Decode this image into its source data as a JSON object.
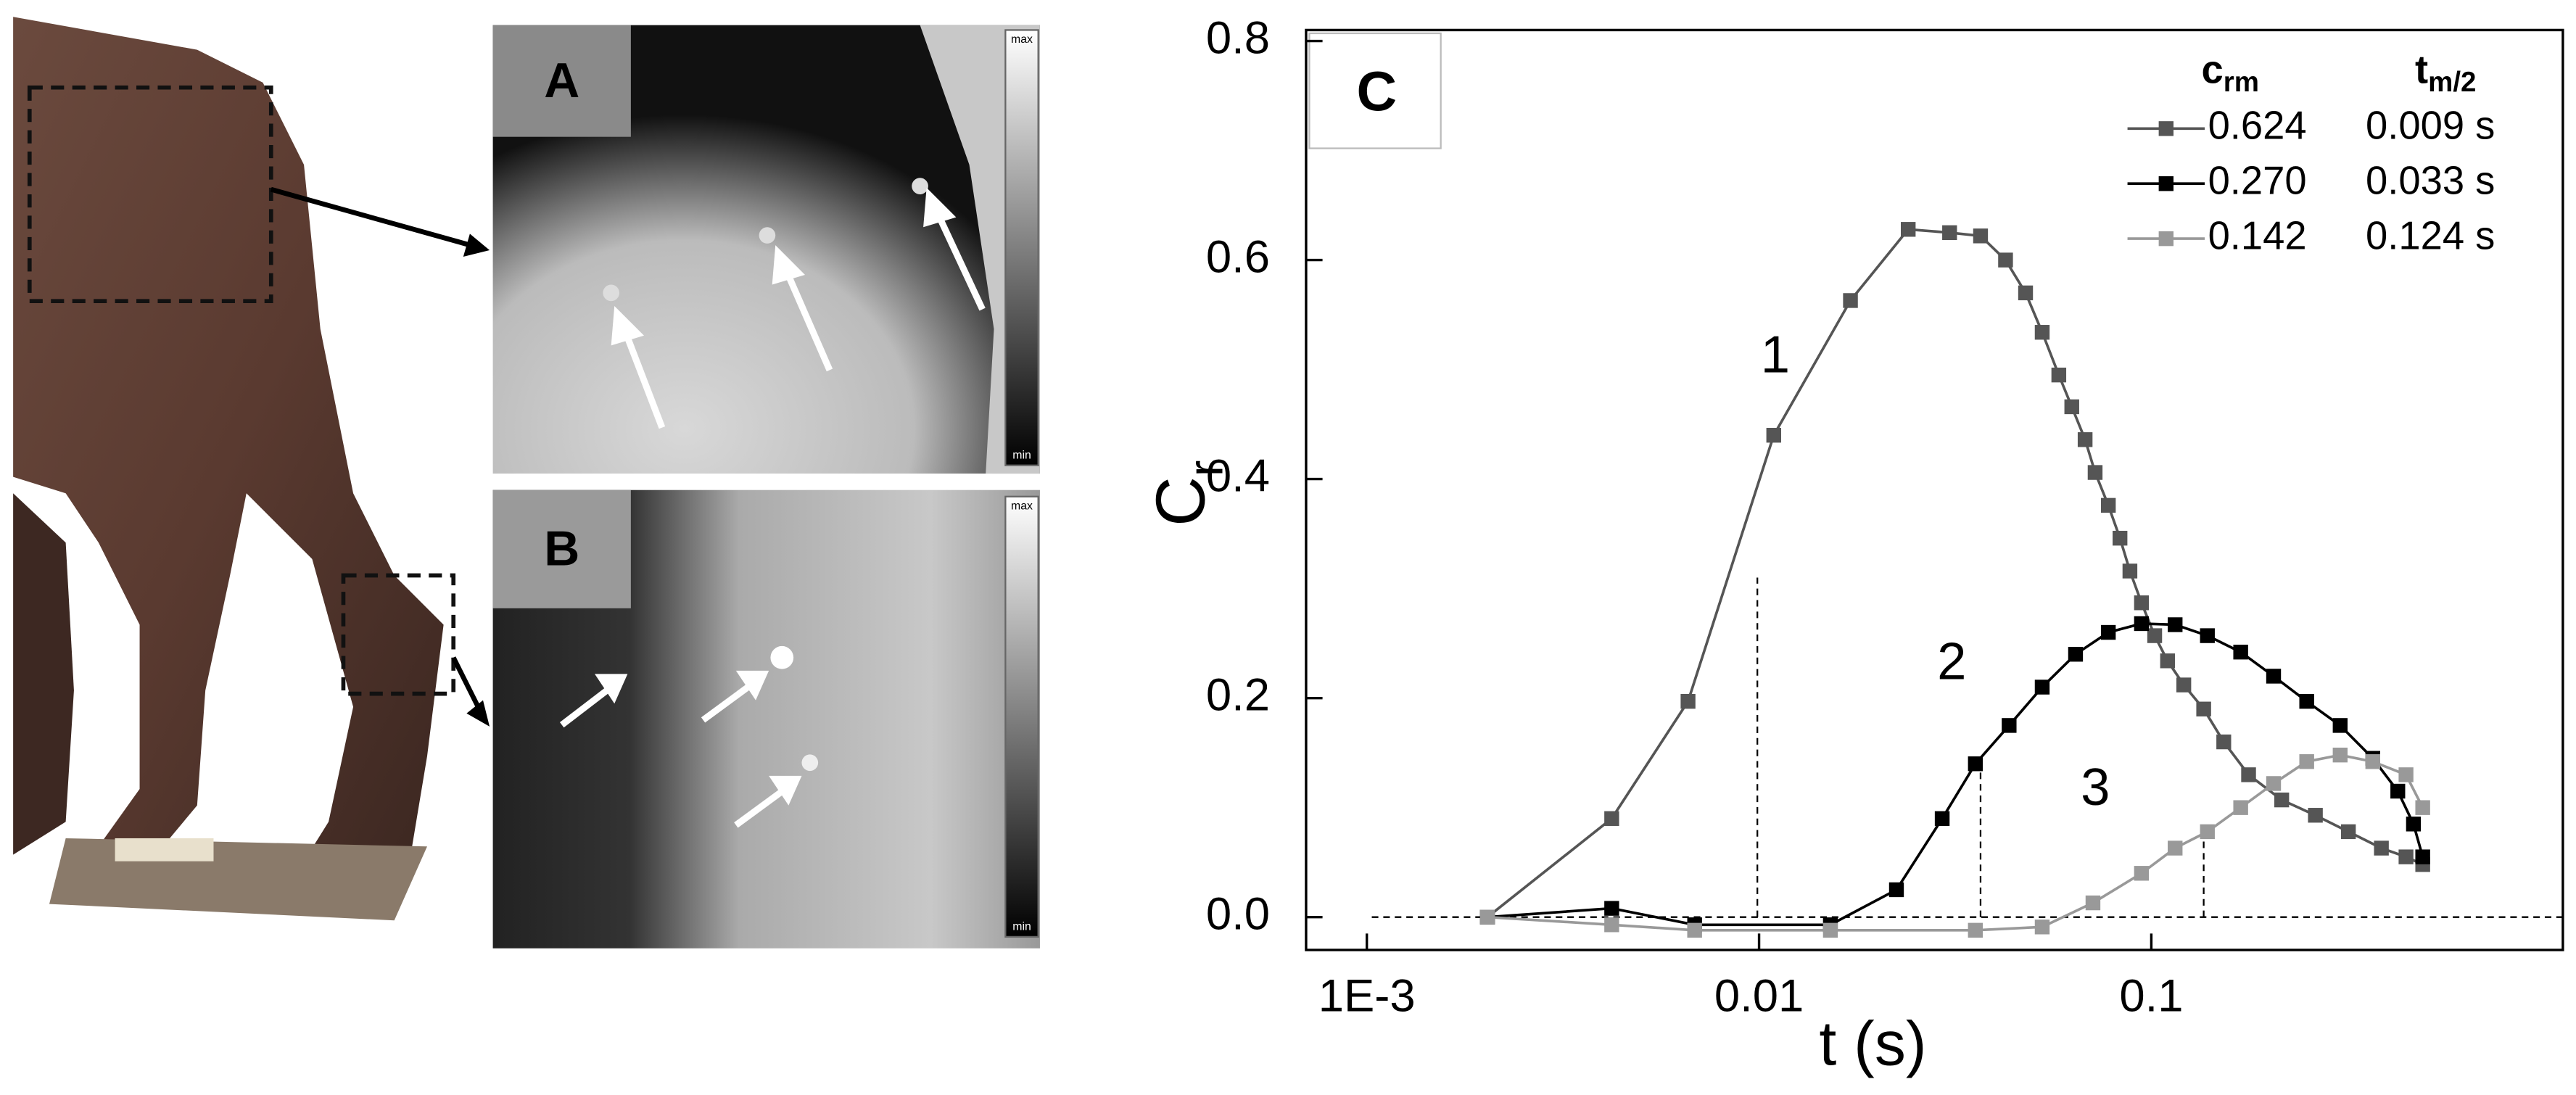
{
  "panels": {
    "A": {
      "label": "A",
      "scale_max": "max",
      "scale_min": "min"
    },
    "B": {
      "label": "B",
      "scale_max": "max",
      "scale_min": "min"
    }
  },
  "chart_data": {
    "type": "line",
    "panel_label": "C",
    "x_scale": "log",
    "x_label": "t (s)",
    "y_label": {
      "text": "C",
      "sub": "r"
    },
    "legend_header": [
      {
        "text": "c",
        "sub": "rm"
      },
      {
        "text": "t",
        "sub": "m/2"
      }
    ],
    "xlim": [
      0.0007,
      1.12
    ],
    "ylim": [
      -0.03,
      0.81
    ],
    "xticks": [
      {
        "value": 0.001,
        "label": "1E-3"
      },
      0.01,
      0.1
    ],
    "yticks": [
      {
        "value": 0,
        "label": "0.0"
      },
      0.2,
      0.4,
      0.6,
      0.8
    ],
    "curve_labels": [
      {
        "text": "1",
        "x": 0.011,
        "y": 0.51
      },
      {
        "text": "2",
        "x": 0.031,
        "y": 0.23
      },
      {
        "text": "3",
        "x": 0.072,
        "y": 0.115
      }
    ],
    "guides": [
      {
        "x": 0.0099,
        "y": 0.31
      },
      {
        "x": 0.0367,
        "y": 0.135
      },
      {
        "x": 0.136,
        "y": 0.07
      }
    ],
    "series": [
      {
        "name": "0.624",
        "t_half": "0.009 s",
        "color": "#555555",
        "x": [
          0.00203,
          0.00421,
          0.00659,
          0.0109,
          0.0171,
          0.024,
          0.0306,
          0.0367,
          0.0425,
          0.0478,
          0.0527,
          0.0581,
          0.0627,
          0.0678,
          0.0719,
          0.0777,
          0.0832,
          0.0882,
          0.0944,
          0.102,
          0.11,
          0.121,
          0.136,
          0.153,
          0.177,
          0.215,
          0.262,
          0.318,
          0.386,
          0.446,
          0.492
        ],
        "values": [
          0,
          0.09,
          0.197,
          0.44,
          0.563,
          0.628,
          0.625,
          0.622,
          0.6,
          0.57,
          0.534,
          0.495,
          0.466,
          0.436,
          0.406,
          0.376,
          0.346,
          0.316,
          0.287,
          0.257,
          0.234,
          0.212,
          0.19,
          0.16,
          0.13,
          0.107,
          0.093,
          0.078,
          0.063,
          0.055,
          0.048
        ]
      },
      {
        "name": "0.270",
        "t_half": "0.033 s",
        "color": "#000000",
        "x": [
          0.00203,
          0.00421,
          0.00685,
          0.0152,
          0.0224,
          0.0293,
          0.0356,
          0.0434,
          0.0527,
          0.0641,
          0.0777,
          0.0944,
          0.115,
          0.139,
          0.169,
          0.205,
          0.249,
          0.303,
          0.367,
          0.425,
          0.466,
          0.492
        ],
        "values": [
          0,
          0.008,
          -0.007,
          -0.007,
          0.025,
          0.09,
          0.14,
          0.175,
          0.21,
          0.24,
          0.26,
          0.268,
          0.267,
          0.257,
          0.242,
          0.22,
          0.197,
          0.175,
          0.145,
          0.115,
          0.085,
          0.055
        ]
      },
      {
        "name": "0.142",
        "t_half": "0.124 s",
        "color": "#999999",
        "x": [
          0.00203,
          0.00421,
          0.00685,
          0.0152,
          0.0356,
          0.0527,
          0.071,
          0.0944,
          0.115,
          0.139,
          0.169,
          0.205,
          0.249,
          0.303,
          0.367,
          0.446,
          0.492
        ],
        "values": [
          0,
          -0.007,
          -0.012,
          -0.012,
          -0.012,
          -0.009,
          0.013,
          0.04,
          0.063,
          0.078,
          0.1,
          0.122,
          0.142,
          0.148,
          0.142,
          0.13,
          0.1
        ]
      }
    ]
  }
}
